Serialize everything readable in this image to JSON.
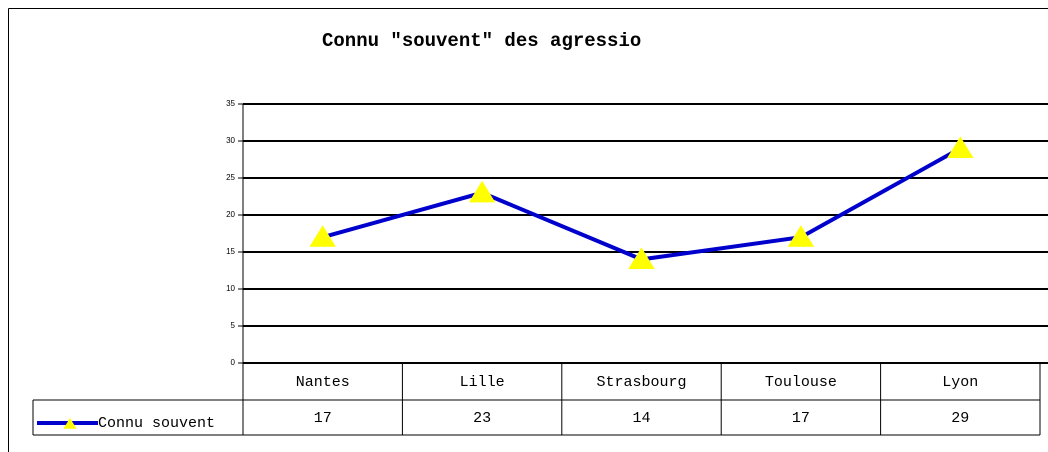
{
  "chart_data": {
    "type": "line",
    "title": "Connu \"souvent\" des agressio",
    "categories": [
      "Nantes",
      "Lille",
      "Strasbourg",
      "Toulouse",
      "Lyon"
    ],
    "series": [
      {
        "name": "Connu souvent",
        "color": "#0000cc",
        "marker_color": "#ffff00",
        "values": [
          17,
          23,
          14,
          17,
          29
        ]
      }
    ],
    "ylim": [
      0,
      35
    ],
    "yticks": [
      0,
      5,
      10,
      15,
      20,
      25,
      30,
      35
    ],
    "grid": true
  }
}
